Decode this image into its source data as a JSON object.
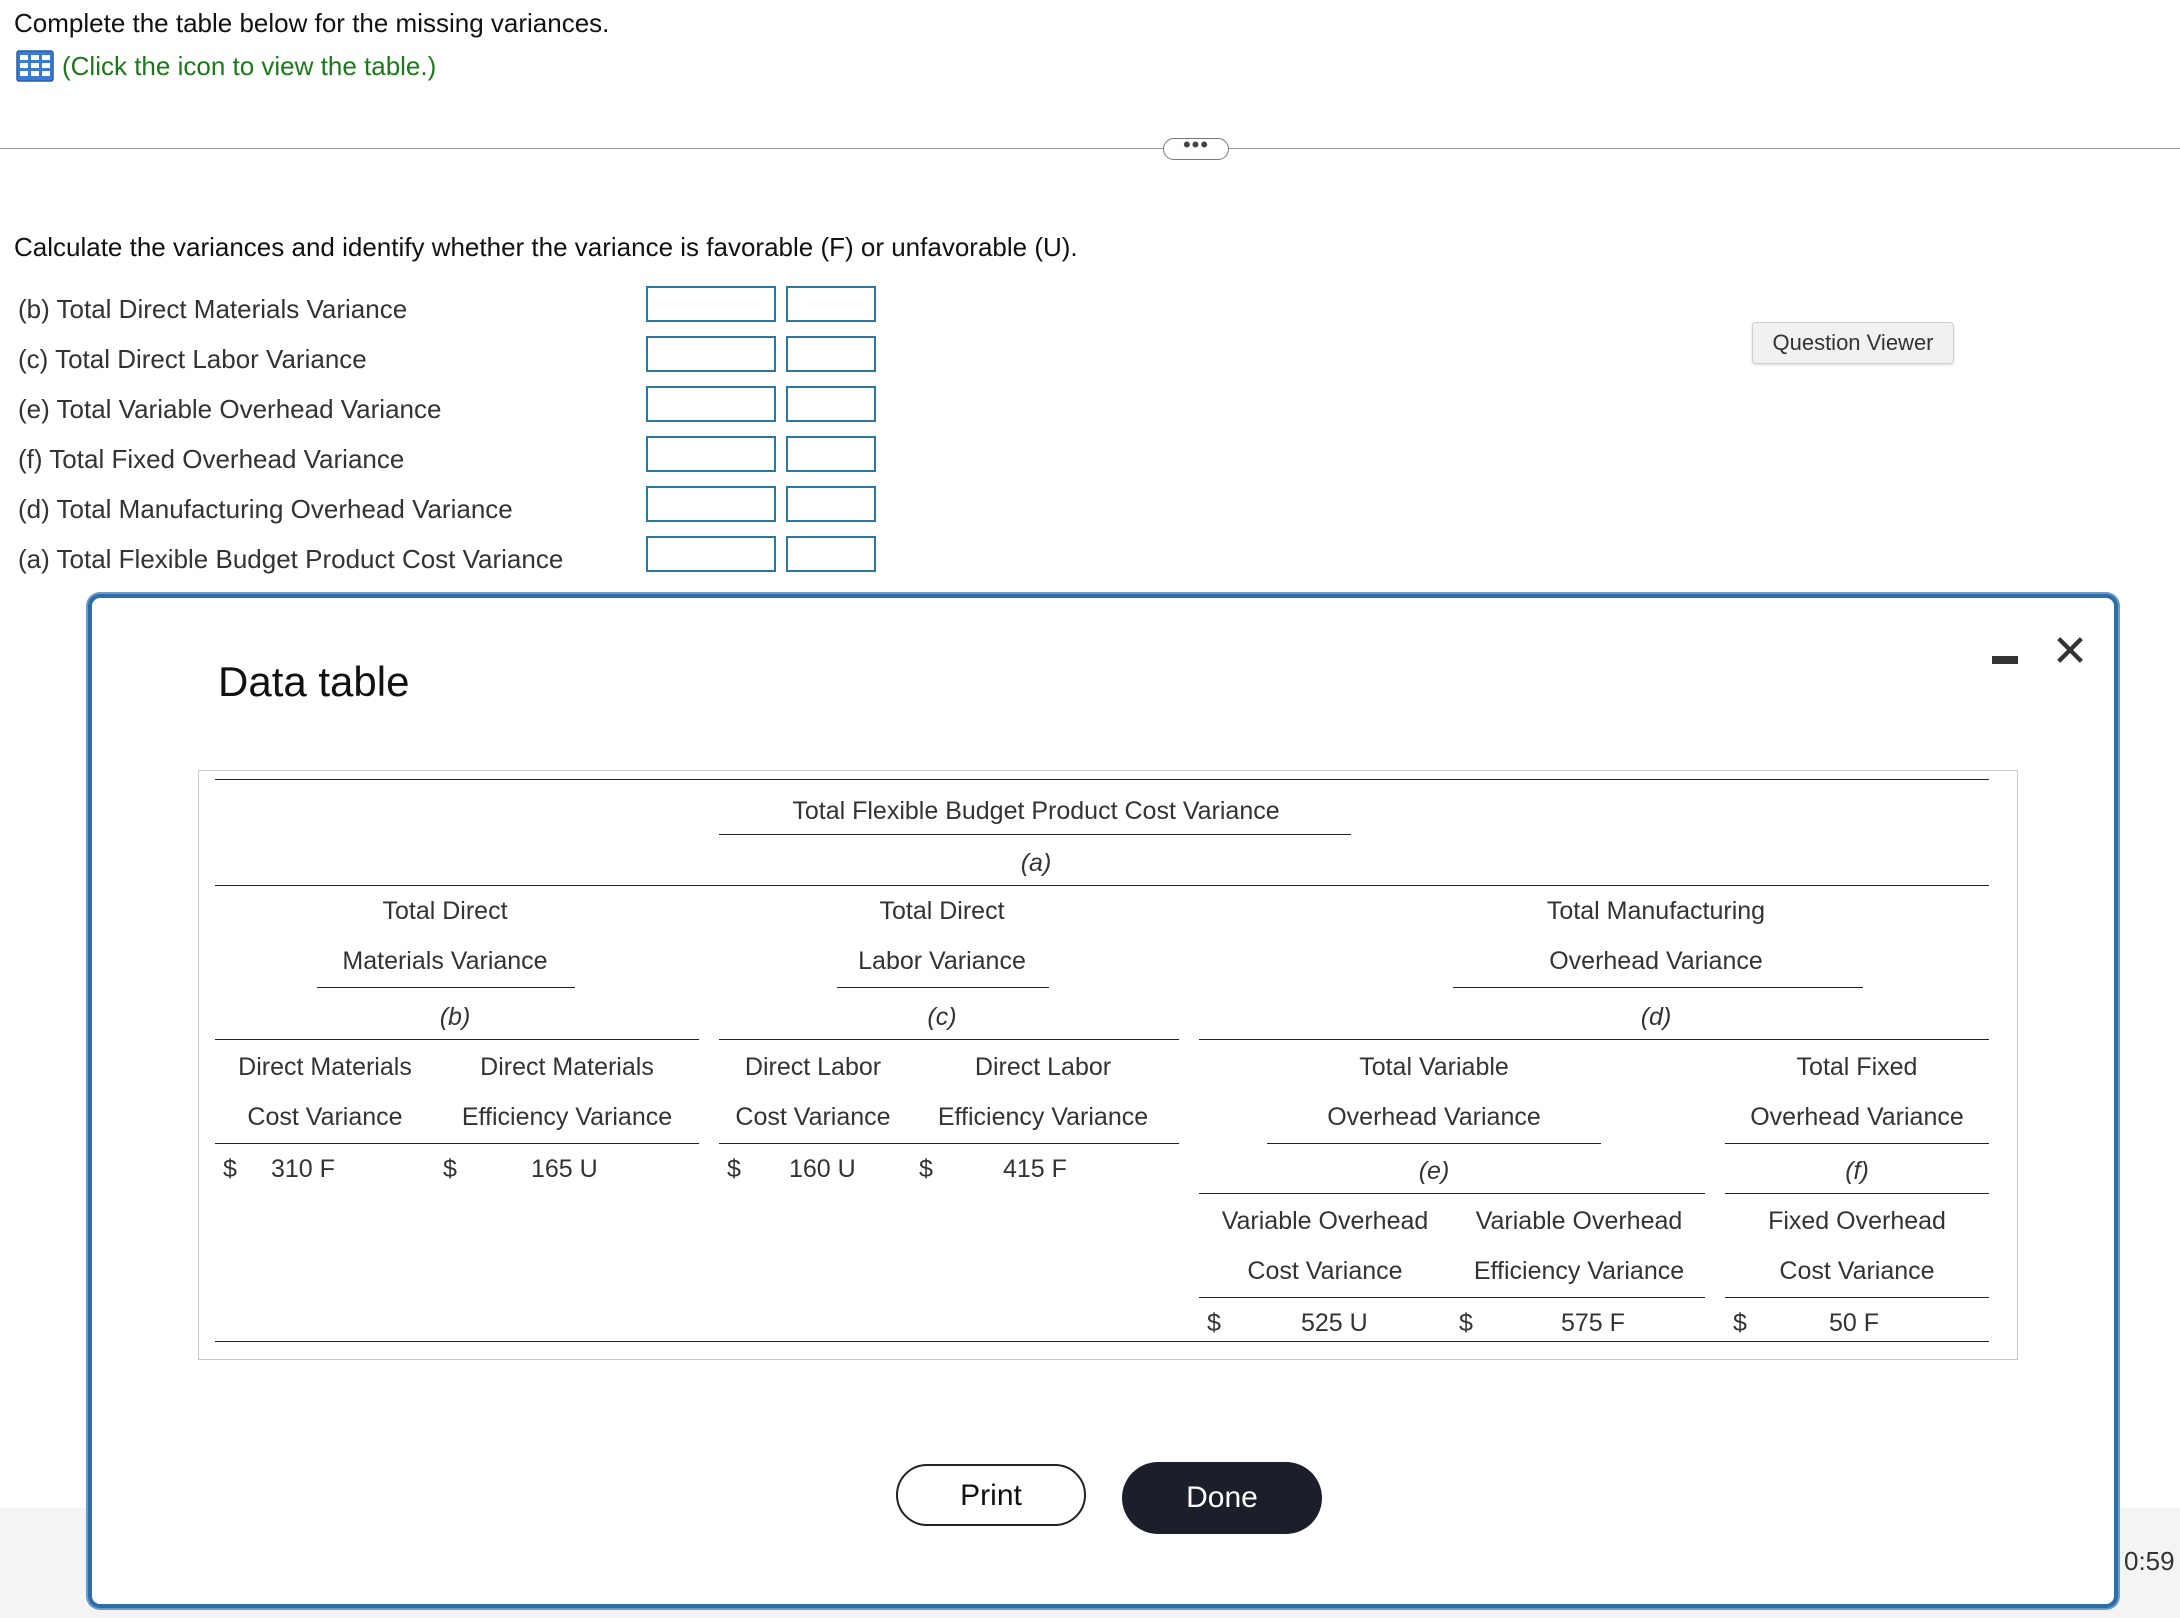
{
  "instructions": "Complete the table below for the missing variances.",
  "table_link": "(Click the icon to view the table.)",
  "expander_label": "•••",
  "calc_instructions": "Calculate the variances and identify whether the variance is favorable (F) or unfavorable (U).",
  "questions": [
    {
      "label": "(b) Total Direct Materials Variance",
      "amount": "",
      "fu": ""
    },
    {
      "label": "(c) Total Direct Labor Variance",
      "amount": "",
      "fu": ""
    },
    {
      "label": "(e) Total Variable Overhead Variance",
      "amount": "",
      "fu": ""
    },
    {
      "label": "(f) Total Fixed Overhead Variance",
      "amount": "",
      "fu": ""
    },
    {
      "label": "(d) Total Manufacturing Overhead Variance",
      "amount": "",
      "fu": ""
    },
    {
      "label": "(a) Total Flexible Budget Product Cost Variance",
      "amount": "",
      "fu": ""
    }
  ],
  "question_viewer": "Question Viewer",
  "timer": "0:59",
  "modal": {
    "title": "Data table",
    "top_header": "Total Flexible Budget Product Cost Variance",
    "top_letter": "(a)",
    "dm_header": [
      "Total Direct",
      "Materials Variance"
    ],
    "dm_letter": "(b)",
    "dl_header": [
      "Total Direct",
      "Labor Variance"
    ],
    "dl_letter": "(c)",
    "mo_header": [
      "Total Manufacturing",
      "Overhead Variance"
    ],
    "mo_letter": "(d)",
    "dm_cost": [
      "Direct Materials",
      "Cost Variance"
    ],
    "dm_eff": [
      "Direct Materials",
      "Efficiency Variance"
    ],
    "dl_cost": [
      "Direct Labor",
      "Cost Variance"
    ],
    "dl_eff": [
      "Direct Labor",
      "Efficiency Variance"
    ],
    "tvo": [
      "Total Variable",
      "Overhead Variance"
    ],
    "tvo_letter": "(e)",
    "tfo": [
      "Total Fixed",
      "Overhead Variance"
    ],
    "tfo_letter": "(f)",
    "vo_cost": [
      "Variable Overhead",
      "Cost Variance"
    ],
    "vo_eff": [
      "Variable Overhead",
      "Efficiency Variance"
    ],
    "fo_cost": [
      "Fixed Overhead",
      "Cost Variance"
    ],
    "currency": "$",
    "values": {
      "dm_cost": "310 F",
      "dm_eff": "165 U",
      "dl_cost": "160 U",
      "dl_eff": "415 F",
      "vo_cost": "525 U",
      "vo_eff": "575 F",
      "fo_cost": "50 F"
    },
    "print_label": "Print",
    "done_label": "Done"
  }
}
